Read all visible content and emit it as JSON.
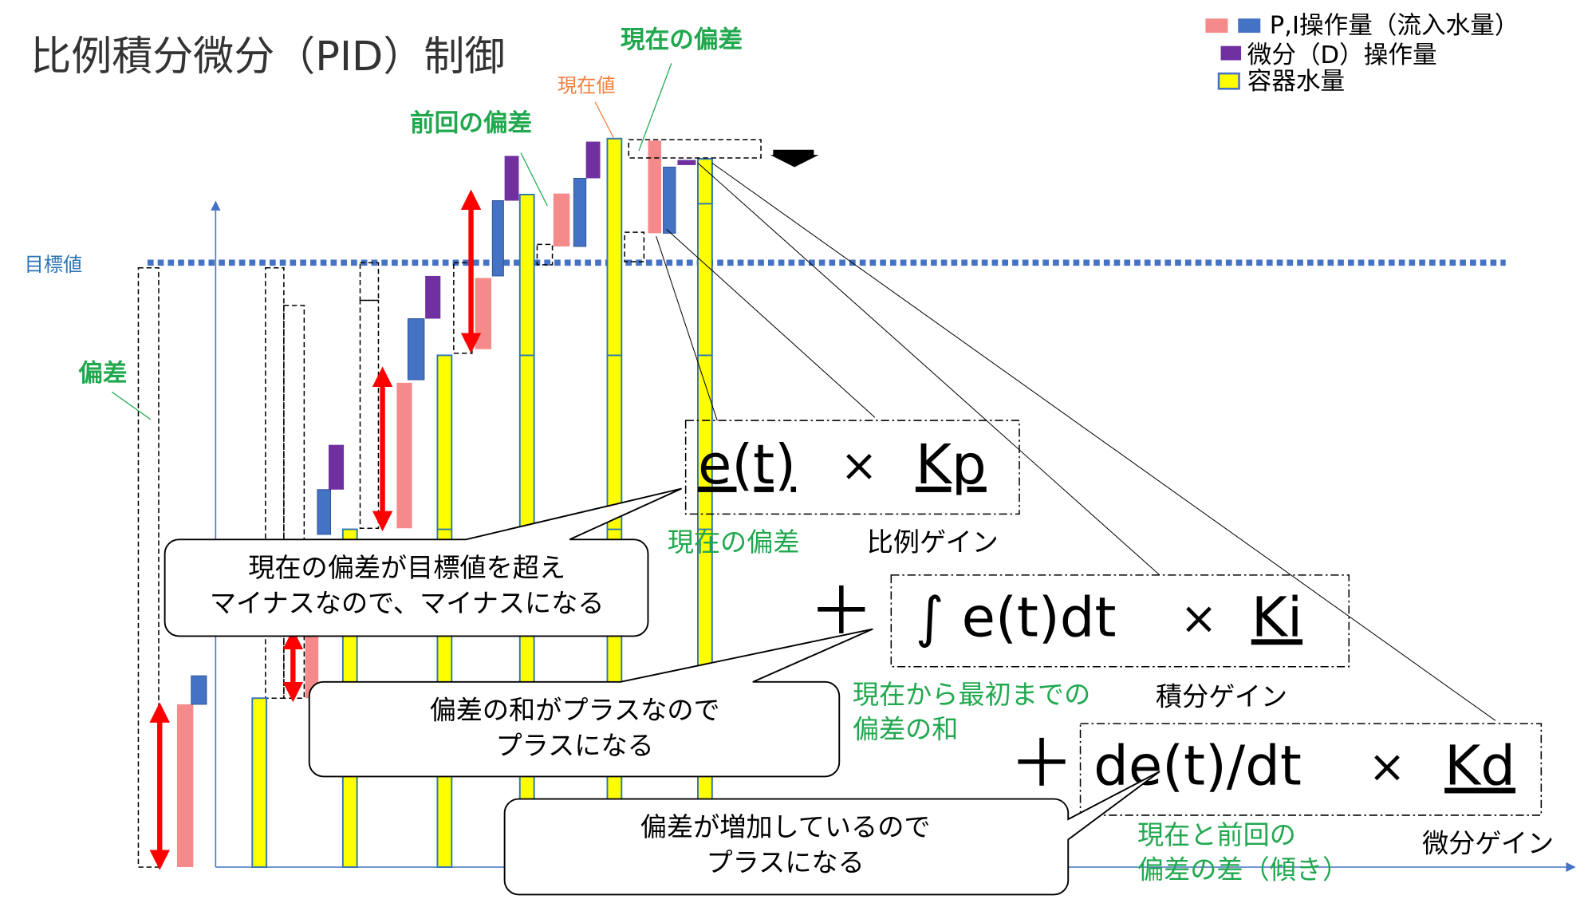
{
  "title": "比例積分微分（PID）制御",
  "legend": [
    "P,I操作量（流入水量）",
    "微分（D）操作量",
    "容器水量"
  ],
  "labels": {
    "current_error": "現在の偏差",
    "current_value": "現在値",
    "previous_error": "前回の偏差",
    "target": "目標値",
    "error": "偏差"
  },
  "formulas": {
    "p": {
      "term": "e(t)",
      "times": "×",
      "gain": "Kp",
      "term_caption": "現在の偏差",
      "gain_caption": "比例ゲイン"
    },
    "i": {
      "plus": "＋",
      "term": "∫ e(t)dt",
      "times": "×",
      "gain": "Ki",
      "term_caption": [
        "現在から最初までの",
        "偏差の和"
      ],
      "gain_caption": "積分ゲイン"
    },
    "d": {
      "plus": "＋",
      "term": "de(t)/dt",
      "times": "×",
      "gain": "Kd",
      "term_caption": [
        "現在と前回の",
        "偏差の差（傾き）"
      ],
      "gain_caption": "微分ゲイン"
    }
  },
  "callouts": [
    [
      "現在の偏差が目標値を超え",
      "マイナスなので、マイナスになる"
    ],
    [
      "偏差の和がプラスなので",
      "プラスになる"
    ],
    [
      "偏差が増加しているので",
      "プラスになる"
    ]
  ]
}
